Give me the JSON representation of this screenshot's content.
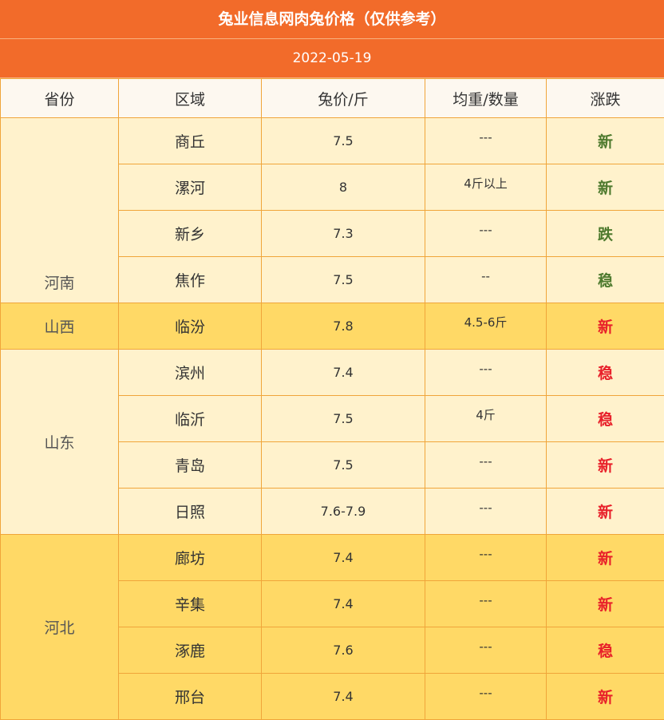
{
  "header": {
    "title": "兔业信息网肉兔价格（仅供参考）",
    "date": "2022-05-19"
  },
  "table": {
    "columns": [
      "省份",
      "区域",
      "兔价/斤",
      "均重/数量",
      "涨跌"
    ],
    "groups": [
      {
        "province": "河南",
        "shade": "#fff2cc",
        "change_color": "#4e7a2e",
        "rows": [
          [
            "商丘",
            "7.5",
            "---",
            "新"
          ],
          [
            "漯河",
            "8",
            "4斤以上",
            "新"
          ],
          [
            "新乡",
            "7.3",
            "---",
            "跌"
          ],
          [
            "焦作",
            "7.5",
            "--",
            "稳"
          ]
        ]
      },
      {
        "province": "山西",
        "shade": "#ffd966",
        "change_color": "#e8202a",
        "rows": [
          [
            "临汾",
            "7.8",
            "4.5-6斤",
            "新"
          ]
        ]
      },
      {
        "province": "山东",
        "shade": "#fff2cc",
        "change_color": "#e8202a",
        "rows": [
          [
            "滨州",
            "7.4",
            "---",
            "稳"
          ],
          [
            "临沂",
            "7.5",
            "4斤",
            "稳"
          ],
          [
            "青岛",
            "7.5",
            "---",
            "新"
          ],
          [
            "日照",
            "7.6-7.9",
            "---",
            "新"
          ]
        ]
      },
      {
        "province": "河北",
        "shade": "#ffd966",
        "change_color": "#e8202a",
        "rows": [
          [
            "廊坊",
            "7.4",
            "---",
            "新"
          ],
          [
            "辛集",
            "7.4",
            "---",
            "新"
          ],
          [
            "涿鹿",
            "7.6",
            "---",
            "稳"
          ],
          [
            "邢台",
            "7.4",
            "---",
            "新"
          ]
        ]
      }
    ]
  }
}
